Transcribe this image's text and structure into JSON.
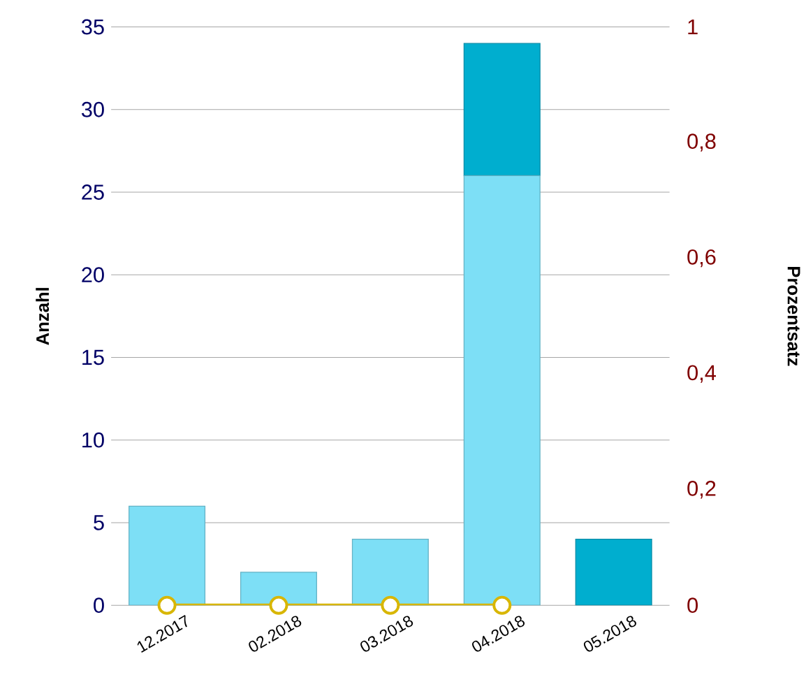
{
  "chart_data": {
    "type": "bar",
    "stacked": true,
    "categories": [
      "12.2017",
      "02.2018",
      "03.2018",
      "04.2018",
      "05.2018"
    ],
    "series": [
      {
        "color": "#7ddff6",
        "values": [
          6,
          2,
          4,
          26,
          0
        ]
      },
      {
        "color": "#00aecf",
        "values": [
          0,
          0,
          0,
          8,
          4
        ]
      },
      {
        "type": "line",
        "axis": "y2",
        "color": "#d8b600",
        "values": [
          0,
          0,
          0,
          0,
          null
        ]
      }
    ],
    "ylabel": "Anzahl",
    "y2label": "Prozentsatz",
    "ylim": [
      0,
      35
    ],
    "yticks": [
      0,
      5,
      10,
      15,
      20,
      25,
      30,
      35
    ],
    "y2lim": [
      0,
      1
    ],
    "y2ticks": [
      {
        "value": 0,
        "label": "0"
      },
      {
        "value": 0.2,
        "label": "0,2"
      },
      {
        "value": 0.4,
        "label": "0,4"
      },
      {
        "value": 0.6,
        "label": "0,6"
      },
      {
        "value": 0.8,
        "label": "0,8"
      },
      {
        "value": 1,
        "label": "1"
      }
    ],
    "grid": "y",
    "marker": "circle"
  }
}
